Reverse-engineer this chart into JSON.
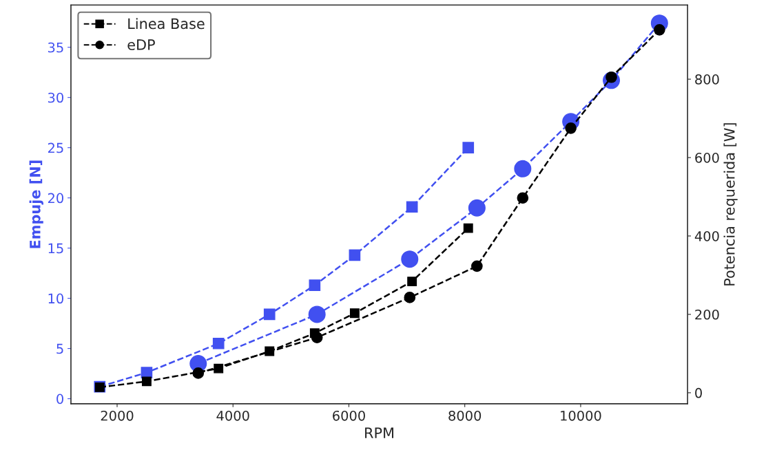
{
  "chart_data": {
    "type": "line",
    "xlabel": "RPM",
    "ylabel": "Empuje [N]",
    "y2label": "Potencia requerida [W]",
    "xlim": [
      1203,
      11845
    ],
    "xticks": [
      2000,
      4000,
      6000,
      8000,
      10000
    ],
    "ylim": [
      -0.5,
      39.2
    ],
    "yticks": [
      0,
      5,
      10,
      15,
      20,
      25,
      30,
      35
    ],
    "y2lim": [
      -28,
      989
    ],
    "y2ticks": [
      0,
      200,
      400,
      600,
      800
    ],
    "line_style": "dashed",
    "grid": false,
    "legend": "top left",
    "series": [
      {
        "color": "#4150f0",
        "marker": "square",
        "x": [
          1700,
          2510,
          3750,
          4630,
          5410,
          6100,
          7090,
          8060
        ],
        "values": [
          1.2,
          2.6,
          5.5,
          8.4,
          11.3,
          14.3,
          19.1,
          25.0
        ]
      },
      {
        "color": "#4150f0",
        "marker": "circle",
        "x": [
          3400,
          5450,
          7050,
          8210,
          9000,
          9830,
          10530,
          11360
        ],
        "values": [
          3.5,
          8.4,
          13.9,
          19.0,
          22.9,
          27.6,
          31.7,
          37.4
        ]
      },
      {
        "name": "Linea Base",
        "color": "#000000",
        "marker": "square",
        "axis": "y2",
        "x": [
          1700,
          2510,
          3750,
          4630,
          5410,
          6100,
          7090,
          8060
        ],
        "values": [
          14,
          29,
          62,
          106,
          152,
          203,
          284,
          420
        ]
      },
      {
        "name": "eDP",
        "color": "#000000",
        "marker": "circle",
        "axis": "y2",
        "x": [
          3400,
          5450,
          7050,
          8210,
          9000,
          9830,
          10530,
          11360
        ],
        "values": [
          50,
          141,
          243,
          323,
          497,
          675,
          805,
          926
        ]
      }
    ]
  }
}
